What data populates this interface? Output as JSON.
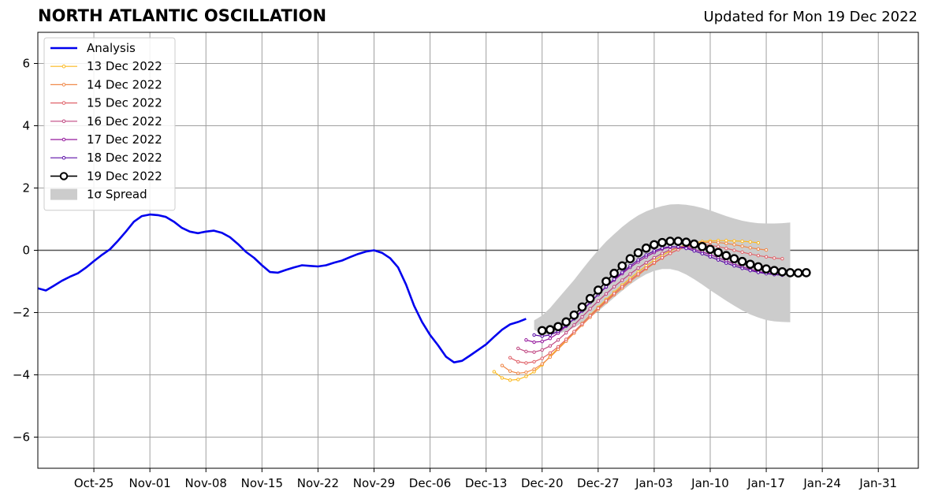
{
  "chart_data": {
    "type": "line",
    "title": "NORTH ATLANTIC OSCILLATION",
    "subtitle": "Updated for Mon 19 Dec 2022",
    "xlabel": "",
    "ylabel": "",
    "xlim": [
      "2022-10-18",
      "2023-02-05"
    ],
    "ylim": [
      -7,
      7
    ],
    "grid": true,
    "legend_position": "top-left",
    "x_ticks": [
      "Oct-25",
      "Nov-01",
      "Nov-08",
      "Nov-15",
      "Nov-22",
      "Nov-29",
      "Dec-06",
      "Dec-13",
      "Dec-20",
      "Dec-27",
      "Jan-03",
      "Jan-10",
      "Jan-17",
      "Jan-24",
      "Jan-31"
    ],
    "y_ticks": [
      "6",
      "4",
      "2",
      "0",
      "−2",
      "−4",
      "−6"
    ],
    "analysis": {
      "name": "Analysis",
      "color": "#0000ee",
      "start_date": "2022-10-18",
      "values": [
        -1.22,
        -1.29,
        -1.14,
        -0.98,
        -0.85,
        -0.74,
        -0.56,
        -0.35,
        -0.15,
        0.03,
        0.3,
        0.6,
        0.92,
        1.1,
        1.15,
        1.13,
        1.07,
        0.92,
        0.72,
        0.6,
        0.55,
        0.6,
        0.63,
        0.56,
        0.42,
        0.2,
        -0.05,
        -0.24,
        -0.48,
        -0.7,
        -0.72,
        -0.63,
        -0.55,
        -0.48,
        -0.5,
        -0.52,
        -0.48,
        -0.4,
        -0.33,
        -0.22,
        -0.12,
        -0.04,
        0.0,
        -0.08,
        -0.25,
        -0.55,
        -1.1,
        -1.78,
        -2.3,
        -2.72,
        -3.05,
        -3.42,
        -3.6,
        -3.55,
        -3.38,
        -3.2,
        -3.02,
        -2.78,
        -2.55,
        -2.38,
        -2.3,
        -2.2
      ]
    },
    "spread": {
      "name": "1σ Spread",
      "color": "#cccccc",
      "start_date": "2022-12-19",
      "upper": [
        -2.25,
        -2.1,
        -1.85,
        -1.55,
        -1.25,
        -0.95,
        -0.62,
        -0.3,
        0.0,
        0.28,
        0.52,
        0.75,
        0.95,
        1.12,
        1.25,
        1.35,
        1.42,
        1.47,
        1.48,
        1.46,
        1.42,
        1.36,
        1.28,
        1.19,
        1.1,
        1.02,
        0.95,
        0.9,
        0.87,
        0.86,
        0.86,
        0.87,
        0.89
      ],
      "lower": [
        -2.55,
        -2.7,
        -2.72,
        -2.68,
        -2.6,
        -2.48,
        -2.33,
        -2.16,
        -1.96,
        -1.74,
        -1.52,
        -1.3,
        -1.1,
        -0.92,
        -0.77,
        -0.66,
        -0.6,
        -0.6,
        -0.66,
        -0.78,
        -0.93,
        -1.1,
        -1.28,
        -1.45,
        -1.62,
        -1.78,
        -1.93,
        -2.06,
        -2.16,
        -2.24,
        -2.28,
        -2.3,
        -2.31
      ]
    },
    "series": [
      {
        "name": "13 Dec 2022",
        "color": "#fbb91f",
        "start_date": "2022-12-14",
        "values": [
          -3.9,
          -4.1,
          -4.17,
          -4.15,
          -4.05,
          -3.9,
          -3.68,
          -3.4,
          -3.14,
          -2.9,
          -2.62,
          -2.35,
          -2.08,
          -1.83,
          -1.58,
          -1.35,
          -1.12,
          -0.9,
          -0.7,
          -0.5,
          -0.32,
          -0.16,
          -0.02,
          0.09,
          0.18,
          0.24,
          0.28,
          0.3,
          0.31,
          0.31,
          0.3,
          0.29,
          0.27,
          0.24
        ]
      },
      {
        "name": "14 Dec 2022",
        "color": "#f0894a",
        "start_date": "2022-12-15",
        "values": [
          -3.7,
          -3.88,
          -3.95,
          -3.92,
          -3.82,
          -3.65,
          -3.43,
          -3.18,
          -2.92,
          -2.66,
          -2.4,
          -2.15,
          -1.9,
          -1.66,
          -1.43,
          -1.22,
          -1.0,
          -0.8,
          -0.6,
          -0.42,
          -0.25,
          -0.1,
          0.03,
          0.12,
          0.2,
          0.24,
          0.26,
          0.25,
          0.22,
          0.18,
          0.13,
          0.08,
          0.04,
          0.01
        ]
      },
      {
        "name": "15 Dec 2022",
        "color": "#e0636a",
        "start_date": "2022-12-16",
        "values": [
          -3.45,
          -3.58,
          -3.62,
          -3.58,
          -3.47,
          -3.3,
          -3.1,
          -2.86,
          -2.61,
          -2.36,
          -2.1,
          -1.86,
          -1.62,
          -1.39,
          -1.17,
          -0.96,
          -0.76,
          -0.57,
          -0.4,
          -0.24,
          -0.1,
          0.02,
          0.11,
          0.16,
          0.18,
          0.16,
          0.12,
          0.06,
          0.0,
          -0.06,
          -0.12,
          -0.17,
          -0.21,
          -0.25,
          -0.27
        ]
      },
      {
        "name": "16 Dec 2022",
        "color": "#c04882",
        "start_date": "2022-12-17",
        "values": [
          -3.15,
          -3.25,
          -3.27,
          -3.2,
          -3.07,
          -2.88,
          -2.65,
          -2.4,
          -2.14,
          -1.88,
          -1.63,
          -1.4,
          -1.17,
          -0.96,
          -0.76,
          -0.57,
          -0.4,
          -0.24,
          -0.1,
          0.02,
          0.09,
          0.12,
          0.12,
          0.08,
          0.02,
          -0.06,
          -0.14,
          -0.23,
          -0.32,
          -0.4,
          -0.47,
          -0.53,
          -0.58,
          -0.62
        ]
      },
      {
        "name": "17 Dec 2022",
        "color": "#95199d",
        "start_date": "2022-12-18",
        "values": [
          -2.88,
          -2.95,
          -2.93,
          -2.83,
          -2.66,
          -2.44,
          -2.19,
          -1.93,
          -1.67,
          -1.42,
          -1.18,
          -0.96,
          -0.75,
          -0.55,
          -0.37,
          -0.21,
          -0.07,
          0.04,
          0.1,
          0.12,
          0.09,
          0.03,
          -0.05,
          -0.14,
          -0.24,
          -0.34,
          -0.44,
          -0.53,
          -0.61,
          -0.68,
          -0.73,
          -0.77,
          -0.79
        ]
      },
      {
        "name": "18 Dec 2022",
        "color": "#5b0fa7",
        "start_date": "2022-12-19",
        "values": [
          -2.72,
          -2.76,
          -2.72,
          -2.6,
          -2.42,
          -2.2,
          -1.95,
          -1.68,
          -1.42,
          -1.17,
          -0.93,
          -0.71,
          -0.5,
          -0.31,
          -0.15,
          -0.02,
          0.07,
          0.12,
          0.11,
          0.06,
          -0.02,
          -0.11,
          -0.21,
          -0.31,
          -0.41,
          -0.5,
          -0.58,
          -0.65,
          -0.71,
          -0.75,
          -0.78,
          -0.8
        ]
      },
      {
        "name": "19 Dec 2022",
        "color": "#000000",
        "start_date": "2022-12-20",
        "values": [
          -2.58,
          -2.55,
          -2.45,
          -2.3,
          -2.08,
          -1.82,
          -1.55,
          -1.28,
          -1.0,
          -0.74,
          -0.5,
          -0.27,
          -0.08,
          0.07,
          0.18,
          0.25,
          0.29,
          0.29,
          0.26,
          0.2,
          0.12,
          0.03,
          -0.07,
          -0.17,
          -0.27,
          -0.36,
          -0.45,
          -0.53,
          -0.6,
          -0.65,
          -0.69,
          -0.72,
          -0.73,
          -0.72
        ]
      }
    ]
  }
}
